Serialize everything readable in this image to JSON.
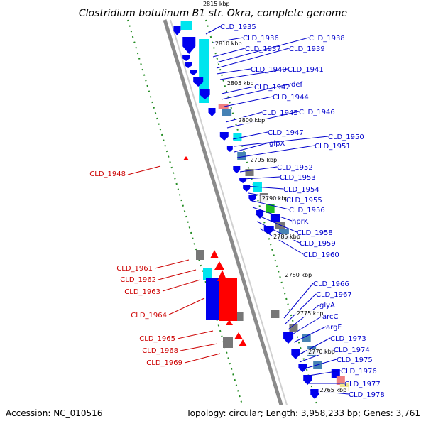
{
  "title": "Clostridium botulinum B1 str. Okra, complete genome",
  "footer": {
    "accession": "Accession: NC_010516",
    "topology": "Topology: circular; Length: 3,958,233 bp; Genes: 3,761"
  },
  "colors": {
    "forward_label": "#0000cc",
    "reverse_label": "#cc0000",
    "backbone": "#8a8a8a",
    "tick": "#228b22",
    "gene_blue": "#0000ee",
    "gene_cyan": "#00e5ee",
    "gene_red": "#ff0000",
    "gene_grey": "#777777",
    "gene_green": "#22bb22",
    "gene_steel": "#4682b4",
    "gene_salmon": "#f08080",
    "gene_yellow": "#f0e68c"
  },
  "kbp_marks": [
    "2815 kbp",
    "2810 kbp",
    "2805 kbp",
    "2800 kbp",
    "2795 kbp",
    "2790 kbp",
    "2785 kbp",
    "2780 kbp",
    "2775 kbp",
    "2770 kbp",
    "2765 kbp"
  ],
  "forward_labels": [
    "CLD_1935",
    "CLD_1936",
    "CLD_1937",
    "CLD_1938",
    "CLD_1939",
    "CLD_1940",
    "CLD_1941",
    "CLD_1942",
    "def",
    "CLD_1944",
    "CLD_1945",
    "CLD_1946",
    "CLD_1947",
    "CLD_1950",
    "glpX",
    "CLD_1951",
    "CLD_1952",
    "CLD_1953",
    "CLD_1954",
    "CLD_1955",
    "CLD_1956",
    "hprK",
    "CLD_1958",
    "CLD_1959",
    "CLD_1960",
    "CLD_1966",
    "CLD_1967",
    "glyA",
    "arcC",
    "argF",
    "CLD_1973",
    "CLD_1974",
    "CLD_1975",
    "CLD_1976",
    "CLD_1977",
    "CLD_1978"
  ],
  "reverse_labels": [
    "CLD_1948",
    "CLD_1961",
    "CLD_1962",
    "CLD_1963",
    "CLD_1964",
    "CLD_1965",
    "CLD_1968",
    "CLD_1969"
  ]
}
